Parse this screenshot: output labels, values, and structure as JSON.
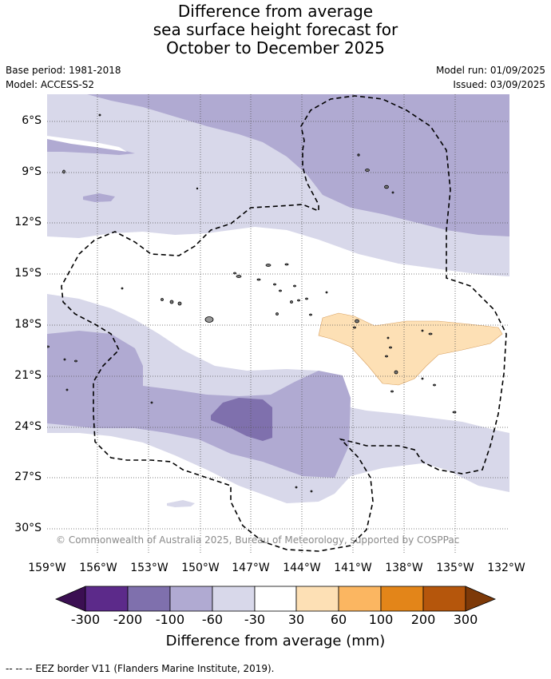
{
  "title": {
    "line1": "Difference from average",
    "line2": "sea surface height forecast for",
    "line3": "October to December 2025"
  },
  "meta": {
    "base_period": "Base period: 1981-2018",
    "model": "Model: ACCESS-S2",
    "model_run": "Model run: 01/09/2025",
    "issued": "Issued: 03/09/2025"
  },
  "map": {
    "lat_labels": [
      "6°S",
      "9°S",
      "12°S",
      "15°S",
      "18°S",
      "21°S",
      "24°S",
      "27°S",
      "30°S"
    ],
    "lon_labels": [
      "159°W",
      "156°W",
      "153°W",
      "150°W",
      "147°W",
      "144°W",
      "141°W",
      "138°W",
      "135°W",
      "132°W"
    ],
    "copyright": "© Commonwealth of Australia 2025, Bureau of Meteorology, supported by COSPPac",
    "colors": {
      "c_minus_300": "#3b0f52",
      "c_minus_200": "#5c2a8a",
      "c_minus_100": "#7f70ad",
      "c_minus_60": "#b0aad2",
      "c_minus_30": "#d8d8ea",
      "neutral": "#ffffff",
      "c_30": "#fde0b5",
      "c_60": "#fbb661",
      "c_100": "#e38519",
      "c_200": "#b5560c",
      "c_300": "#7d3908"
    }
  },
  "colorbar": {
    "labels": [
      "-300",
      "-200",
      "-100",
      "-60",
      "-30",
      "30",
      "60",
      "100",
      "200",
      "300"
    ],
    "title": "Difference from average (mm)"
  },
  "footnote": "--  --  -- EEZ border V11 (Flanders Marine Institute, 2019)."
}
